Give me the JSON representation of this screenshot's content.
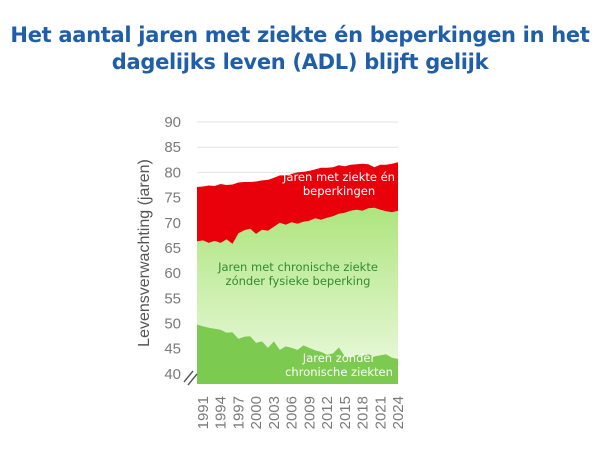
{
  "title": {
    "line1": "Het aantal jaren met ziekte én beperkingen in het",
    "line2": "dagelijks leven (ADL) blijft gelijk"
  },
  "colors": {
    "title": "#1f5ea8",
    "top_band": "#e8000b",
    "middle_band": "#b9e98f",
    "bottom_band": "#7cca4f",
    "axis_text": "#7a7a7a"
  },
  "chart_data": {
    "type": "area",
    "stacked": true,
    "ylabel": "Levensverwachting (jaren)",
    "ylim": [
      38,
      90
    ],
    "yticks": [
      40,
      45,
      50,
      55,
      60,
      65,
      70,
      75,
      80,
      85,
      90
    ],
    "axis_break": true,
    "x_tick_labels": [
      "1991",
      "1994",
      "1997",
      "2000",
      "2003",
      "2006",
      "2009",
      "2012",
      "2015",
      "2018",
      "2021",
      "2024"
    ],
    "x": [
      1990,
      1991,
      1992,
      1993,
      1994,
      1995,
      1996,
      1997,
      1998,
      1999,
      2000,
      2001,
      2002,
      2003,
      2004,
      2005,
      2006,
      2007,
      2008,
      2009,
      2010,
      2011,
      2012,
      2013,
      2014,
      2015,
      2016,
      2017,
      2018,
      2019,
      2020,
      2021,
      2022,
      2023,
      2024
    ],
    "series": [
      {
        "name": "Jaren zonder chronische ziekten",
        "name_lines": [
          "Jaren zonder",
          "chronische ziekten"
        ],
        "cumulative_top": [
          49.8,
          49.5,
          49.2,
          49.0,
          48.8,
          48.2,
          48.3,
          47.0,
          47.4,
          47.5,
          46.2,
          46.5,
          45.2,
          46.5,
          44.8,
          45.5,
          45.2,
          44.8,
          45.7,
          45.2,
          44.7,
          44.4,
          43.8,
          44.1,
          45.3,
          43.5,
          43.3,
          43.8,
          43.6,
          43.9,
          43.5,
          43.7,
          43.9,
          43.2,
          43.0
        ]
      },
      {
        "name": "Jaren met chronische ziekte zónder fysieke beperking",
        "name_lines": [
          "Jaren met chronische ziekte",
          "zónder fysieke beperking"
        ],
        "cumulative_top": [
          66.3,
          66.5,
          66.0,
          66.4,
          66.0,
          66.7,
          65.8,
          67.9,
          68.5,
          68.8,
          67.8,
          68.6,
          68.4,
          69.2,
          70.0,
          69.6,
          70.1,
          69.8,
          70.2,
          70.4,
          70.9,
          70.6,
          71.0,
          71.3,
          71.8,
          72.0,
          72.4,
          72.6,
          72.4,
          72.9,
          73.0,
          72.6,
          72.3,
          72.1,
          72.4
        ]
      },
      {
        "name": "Jaren met ziekte én beperkingen",
        "name_lines": [
          "Jaren met ziekte én",
          "beperkingen"
        ],
        "cumulative_top": [
          77.1,
          77.2,
          77.4,
          77.3,
          77.7,
          77.5,
          77.6,
          78.0,
          78.1,
          78.1,
          78.2,
          78.4,
          78.5,
          78.9,
          79.4,
          79.4,
          79.7,
          80.0,
          80.1,
          80.3,
          80.6,
          80.9,
          80.9,
          81.0,
          81.4,
          81.2,
          81.5,
          81.6,
          81.7,
          81.6,
          81.0,
          81.5,
          81.5,
          81.7,
          82.0
        ]
      }
    ]
  }
}
